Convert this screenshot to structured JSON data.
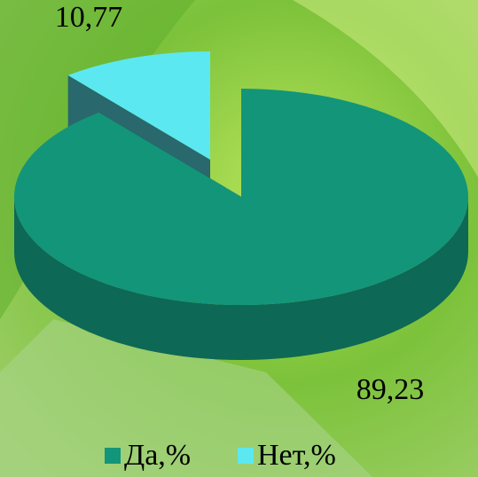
{
  "chart_data": {
    "type": "pie3d",
    "categories": [
      "Да,%",
      "Нет,%"
    ],
    "values": [
      89.23,
      10.77
    ],
    "value_labels": [
      "89,23",
      "10,77"
    ],
    "colors": [
      "#13957a",
      "#5ce8f0"
    ],
    "legend": "bottom"
  }
}
